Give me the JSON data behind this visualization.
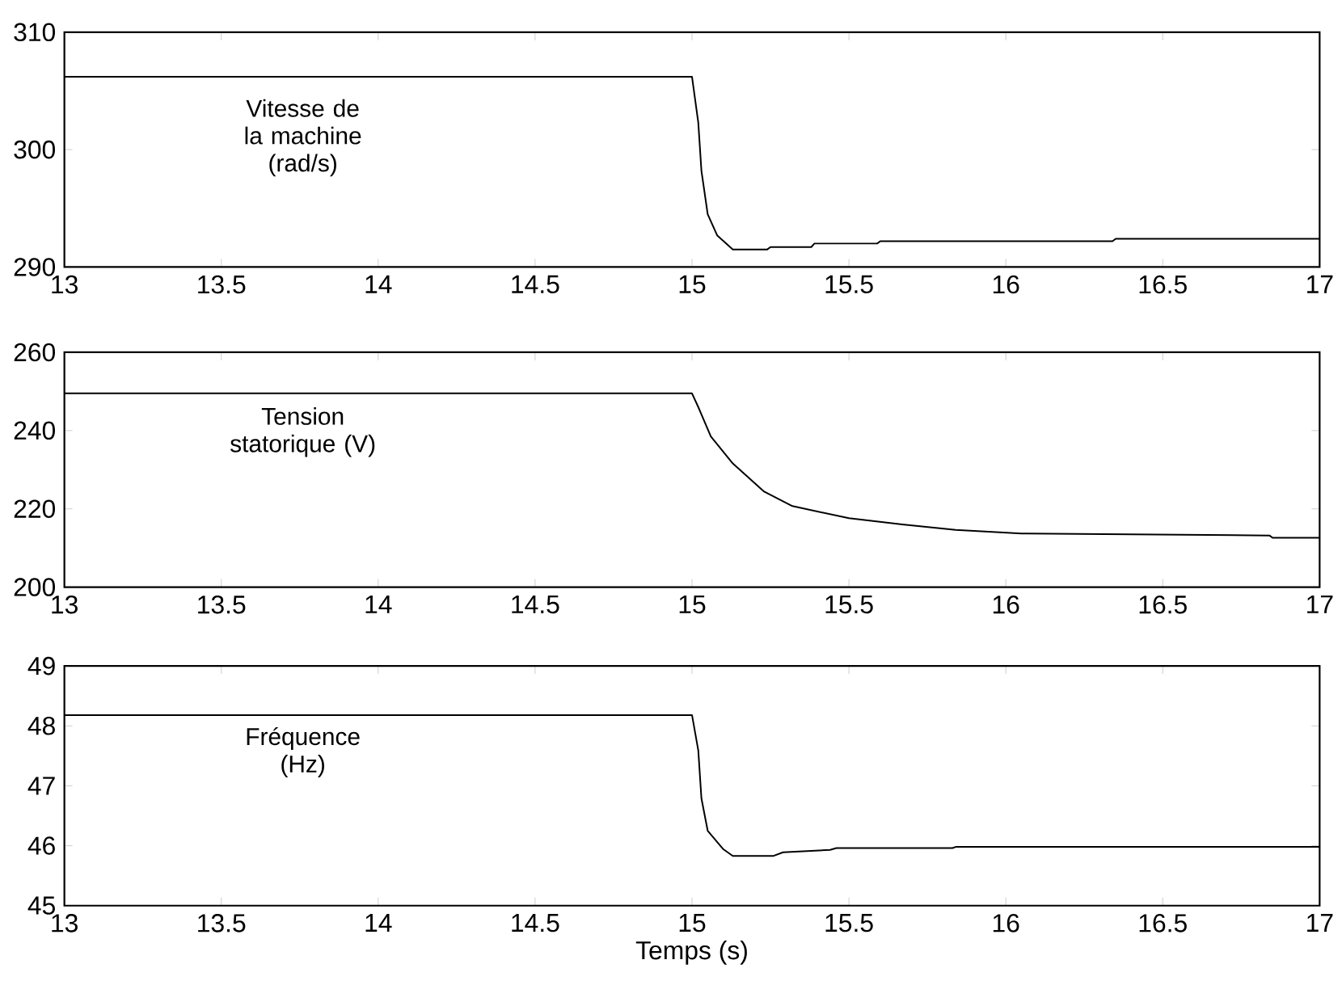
{
  "chart_data": [
    {
      "type": "line",
      "annotations": [
        "Vitesse de la machine (rad/s)"
      ],
      "series": [
        {
          "color": "#000000",
          "x": [
            13,
            15.0,
            15.02,
            15.03,
            15.05,
            15.08,
            15.13,
            15.24,
            15.25,
            15.38,
            15.39,
            15.59,
            15.6,
            16.34,
            16.35,
            17
          ],
          "values": [
            306.2,
            306.2,
            302.3,
            298.2,
            294.5,
            292.7,
            291.5,
            291.5,
            291.7,
            291.7,
            292.0,
            292.0,
            292.2,
            292.2,
            292.4,
            292.4
          ]
        }
      ],
      "xlim": [
        13,
        17
      ],
      "xticks": [
        13,
        13.5,
        14,
        14.5,
        15,
        15.5,
        16,
        16.5,
        17
      ],
      "ylim": [
        290,
        310
      ],
      "yticks": [
        290,
        300,
        310
      ],
      "grid": false,
      "marker": "none",
      "line_style": "solid"
    },
    {
      "type": "line",
      "annotations": [
        "Tension statorique (V)"
      ],
      "series": [
        {
          "color": "#000000",
          "x": [
            13,
            15.0,
            15.02,
            15.06,
            15.13,
            15.23,
            15.32,
            15.5,
            15.67,
            15.84,
            16.05,
            16.84,
            16.85,
            17
          ],
          "values": [
            249.5,
            249.5,
            246.0,
            238.5,
            231.6,
            224.4,
            220.7,
            217.6,
            216.0,
            214.6,
            213.7,
            213.2,
            212.6,
            212.6
          ]
        }
      ],
      "xlim": [
        13,
        17
      ],
      "xticks": [
        13,
        13.5,
        14,
        14.5,
        15,
        15.5,
        16,
        16.5,
        17
      ],
      "ylim": [
        200,
        260
      ],
      "yticks": [
        200,
        220,
        240,
        260
      ],
      "grid": false,
      "marker": "none",
      "line_style": "solid"
    },
    {
      "type": "line",
      "xlabel": "Temps (s)",
      "annotations": [
        "Fréquence (Hz)"
      ],
      "series": [
        {
          "color": "#000000",
          "x": [
            13,
            15.0,
            15.02,
            15.03,
            15.05,
            15.1,
            15.13,
            15.26,
            15.29,
            15.44,
            15.46,
            15.83,
            15.84,
            17
          ],
          "values": [
            48.18,
            48.18,
            47.59,
            46.79,
            46.25,
            45.94,
            45.83,
            45.83,
            45.89,
            45.93,
            45.96,
            45.96,
            45.98,
            45.98
          ]
        }
      ],
      "xlim": [
        13,
        17
      ],
      "xticks": [
        13,
        13.5,
        14,
        14.5,
        15,
        15.5,
        16,
        16.5,
        17
      ],
      "ylim": [
        45,
        49
      ],
      "yticks": [
        45,
        46,
        47,
        48,
        49
      ],
      "grid": false,
      "marker": "none",
      "line_style": "solid"
    }
  ]
}
